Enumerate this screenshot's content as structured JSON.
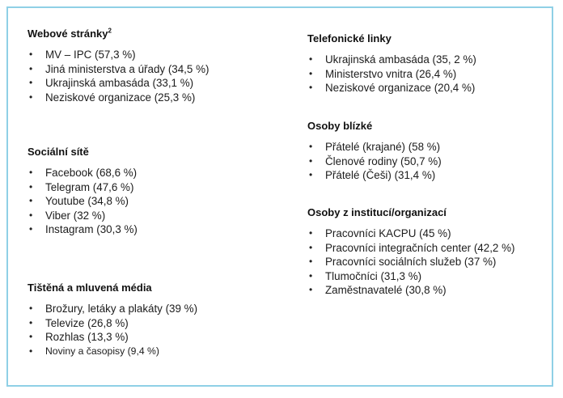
{
  "left_column": [
    {
      "heading": "Webové stránky",
      "heading_sup": "2",
      "items": [
        "MV – IPC (57,3 %)",
        "Jiná ministerstva a úřady (34,5 %)",
        "Ukrajinská ambasáda (33,1 %)",
        "Neziskové organizace (25,3 %)"
      ]
    },
    {
      "heading": "Sociální sítě",
      "items": [
        "Facebook (68,6 %)",
        "Telegram (47,6 %)",
        "Youtube (34,8 %)",
        "Viber (32 %)",
        "Instagram (30,3 %)"
      ]
    },
    {
      "heading": "Tištěná a mluvená média",
      "items": [
        "Brožury, letáky a plakáty (39 %)",
        "Televize (26,8 %)",
        "Rozhlas (13,3 %)",
        "Noviny a časopisy (9,4 %)"
      ]
    }
  ],
  "right_column": [
    {
      "heading": "Telefonické linky",
      "items": [
        "Ukrajinská ambasáda (35, 2 %)",
        "Ministerstvo vnitra (26,4 %)",
        "Neziskové organizace (20,4 %)"
      ]
    },
    {
      "heading": "Osoby blízké",
      "items": [
        "Přátelé (krajané) (58 %)",
        "Členové rodiny (50,7 %)",
        "Přátelé (Češi) (31,4 %)"
      ]
    },
    {
      "heading": "Osoby z institucí/organizací",
      "items": [
        "Pracovníci KACPU (45 %)",
        "Pracovníci integračních center (42,2 %)",
        "Pracovníci sociálních služeb (37 %)",
        "Tlumočníci (31,3 %)",
        "Zaměstnavatelé (30,8 %)"
      ]
    }
  ],
  "bullet": "•"
}
